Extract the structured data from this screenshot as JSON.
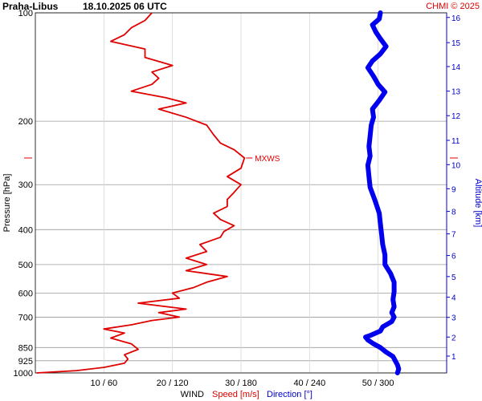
{
  "header": {
    "station": "Praha-Libus",
    "datetime": "18.10.2025 06 UTC",
    "copyright": "CHMI © 2025"
  },
  "colors": {
    "speed": "#e00000",
    "direction": "#0000ee",
    "grid": "#9a9a9a",
    "axis_blue": "#0000cc"
  },
  "chart_data": {
    "type": "line",
    "yscale": "log",
    "ylabel": "Pressure [hPa]",
    "ylim": [
      1000,
      100
    ],
    "y_ticks": [
      100,
      200,
      300,
      400,
      500,
      600,
      700,
      850,
      925,
      1000
    ],
    "x_ticks": [
      {
        "speed": 10,
        "dir": 60,
        "label": "10 / 60"
      },
      {
        "speed": 20,
        "dir": 120,
        "label": "20 / 120"
      },
      {
        "speed": 30,
        "dir": 180,
        "label": "30 / 180"
      },
      {
        "speed": 40,
        "dir": 240,
        "label": "40 / 240"
      },
      {
        "speed": 50,
        "dir": 300,
        "label": "50 / 300"
      }
    ],
    "xlim_speed": [
      0,
      60
    ],
    "xlabel": {
      "prefix": "WIND",
      "speed": "Speed [m/s]",
      "direction": "Direction [°]"
    },
    "altitude_axis": {
      "label": "Altitude [km]",
      "ticks": [
        {
          "km": 1,
          "p": 898
        },
        {
          "km": 2,
          "p": 795
        },
        {
          "km": 3,
          "p": 701
        },
        {
          "km": 4,
          "p": 616
        },
        {
          "km": 5,
          "p": 540
        },
        {
          "km": 6,
          "p": 472
        },
        {
          "km": 7,
          "p": 411
        },
        {
          "km": 8,
          "p": 356
        },
        {
          "km": 9,
          "p": 308
        },
        {
          "km": 10,
          "p": 264
        },
        {
          "km": 11,
          "p": 226
        },
        {
          "km": 12,
          "p": 193
        },
        {
          "km": 13,
          "p": 165
        },
        {
          "km": 14,
          "p": 141
        },
        {
          "km": 15,
          "p": 121
        },
        {
          "km": 16,
          "p": 103
        }
      ]
    },
    "max_wind": {
      "label": "MXWS",
      "p": 253,
      "speed": 30.5
    },
    "series": [
      {
        "name": "Speed [m/s]",
        "unit": "m/s",
        "points": [
          {
            "p": 1000,
            "v": 0.2
          },
          {
            "p": 985,
            "v": 6
          },
          {
            "p": 965,
            "v": 10
          },
          {
            "p": 940,
            "v": 13
          },
          {
            "p": 915,
            "v": 13.5
          },
          {
            "p": 890,
            "v": 13
          },
          {
            "p": 860,
            "v": 15
          },
          {
            "p": 830,
            "v": 14
          },
          {
            "p": 800,
            "v": 11
          },
          {
            "p": 775,
            "v": 13
          },
          {
            "p": 755,
            "v": 10
          },
          {
            "p": 735,
            "v": 14
          },
          {
            "p": 715,
            "v": 17
          },
          {
            "p": 700,
            "v": 21
          },
          {
            "p": 680,
            "v": 18
          },
          {
            "p": 665,
            "v": 22
          },
          {
            "p": 640,
            "v": 15
          },
          {
            "p": 620,
            "v": 21
          },
          {
            "p": 600,
            "v": 20
          },
          {
            "p": 580,
            "v": 23
          },
          {
            "p": 560,
            "v": 25
          },
          {
            "p": 540,
            "v": 28
          },
          {
            "p": 520,
            "v": 22
          },
          {
            "p": 500,
            "v": 25
          },
          {
            "p": 480,
            "v": 22
          },
          {
            "p": 460,
            "v": 25
          },
          {
            "p": 440,
            "v": 24
          },
          {
            "p": 420,
            "v": 27
          },
          {
            "p": 405,
            "v": 27.5
          },
          {
            "p": 390,
            "v": 29
          },
          {
            "p": 375,
            "v": 27
          },
          {
            "p": 360,
            "v": 26
          },
          {
            "p": 345,
            "v": 28
          },
          {
            "p": 330,
            "v": 28
          },
          {
            "p": 315,
            "v": 29
          },
          {
            "p": 300,
            "v": 30
          },
          {
            "p": 285,
            "v": 28
          },
          {
            "p": 270,
            "v": 30
          },
          {
            "p": 253,
            "v": 30.5
          },
          {
            "p": 240,
            "v": 29
          },
          {
            "p": 230,
            "v": 27
          },
          {
            "p": 218,
            "v": 26
          },
          {
            "p": 205,
            "v": 25
          },
          {
            "p": 195,
            "v": 22
          },
          {
            "p": 185,
            "v": 18
          },
          {
            "p": 178,
            "v": 22
          },
          {
            "p": 172,
            "v": 19
          },
          {
            "p": 165,
            "v": 14
          },
          {
            "p": 158,
            "v": 17
          },
          {
            "p": 152,
            "v": 18
          },
          {
            "p": 146,
            "v": 17
          },
          {
            "p": 140,
            "v": 20
          },
          {
            "p": 133,
            "v": 16
          },
          {
            "p": 126,
            "v": 16
          },
          {
            "p": 120,
            "v": 11
          },
          {
            "p": 115,
            "v": 13
          },
          {
            "p": 110,
            "v": 14
          },
          {
            "p": 105,
            "v": 16
          },
          {
            "p": 100,
            "v": 17
          }
        ]
      },
      {
        "name": "Direction [°]",
        "unit": "°",
        "points": [
          {
            "p": 1000,
            "v": 317
          },
          {
            "p": 975,
            "v": 318
          },
          {
            "p": 950,
            "v": 317
          },
          {
            "p": 925,
            "v": 315
          },
          {
            "p": 900,
            "v": 313
          },
          {
            "p": 875,
            "v": 307
          },
          {
            "p": 850,
            "v": 302
          },
          {
            "p": 830,
            "v": 296
          },
          {
            "p": 810,
            "v": 291
          },
          {
            "p": 795,
            "v": 289
          },
          {
            "p": 785,
            "v": 294
          },
          {
            "p": 765,
            "v": 302
          },
          {
            "p": 745,
            "v": 304
          },
          {
            "p": 720,
            "v": 312
          },
          {
            "p": 700,
            "v": 314
          },
          {
            "p": 680,
            "v": 312
          },
          {
            "p": 655,
            "v": 314
          },
          {
            "p": 625,
            "v": 313
          },
          {
            "p": 595,
            "v": 314
          },
          {
            "p": 560,
            "v": 314
          },
          {
            "p": 530,
            "v": 311
          },
          {
            "p": 500,
            "v": 306
          },
          {
            "p": 470,
            "v": 306
          },
          {
            "p": 440,
            "v": 304
          },
          {
            "p": 410,
            "v": 303
          },
          {
            "p": 385,
            "v": 302
          },
          {
            "p": 360,
            "v": 301
          },
          {
            "p": 330,
            "v": 297
          },
          {
            "p": 305,
            "v": 293
          },
          {
            "p": 285,
            "v": 292
          },
          {
            "p": 265,
            "v": 291
          },
          {
            "p": 250,
            "v": 293
          },
          {
            "p": 235,
            "v": 292
          },
          {
            "p": 220,
            "v": 293
          },
          {
            "p": 205,
            "v": 294
          },
          {
            "p": 195,
            "v": 296
          },
          {
            "p": 185,
            "v": 295
          },
          {
            "p": 175,
            "v": 301
          },
          {
            "p": 166,
            "v": 306
          },
          {
            "p": 158,
            "v": 300
          },
          {
            "p": 150,
            "v": 296
          },
          {
            "p": 142,
            "v": 291
          },
          {
            "p": 136,
            "v": 295
          },
          {
            "p": 130,
            "v": 302
          },
          {
            "p": 124,
            "v": 307
          },
          {
            "p": 118,
            "v": 302
          },
          {
            "p": 113,
            "v": 298
          },
          {
            "p": 108,
            "v": 295
          },
          {
            "p": 104,
            "v": 301
          },
          {
            "p": 100,
            "v": 302
          }
        ]
      }
    ]
  }
}
